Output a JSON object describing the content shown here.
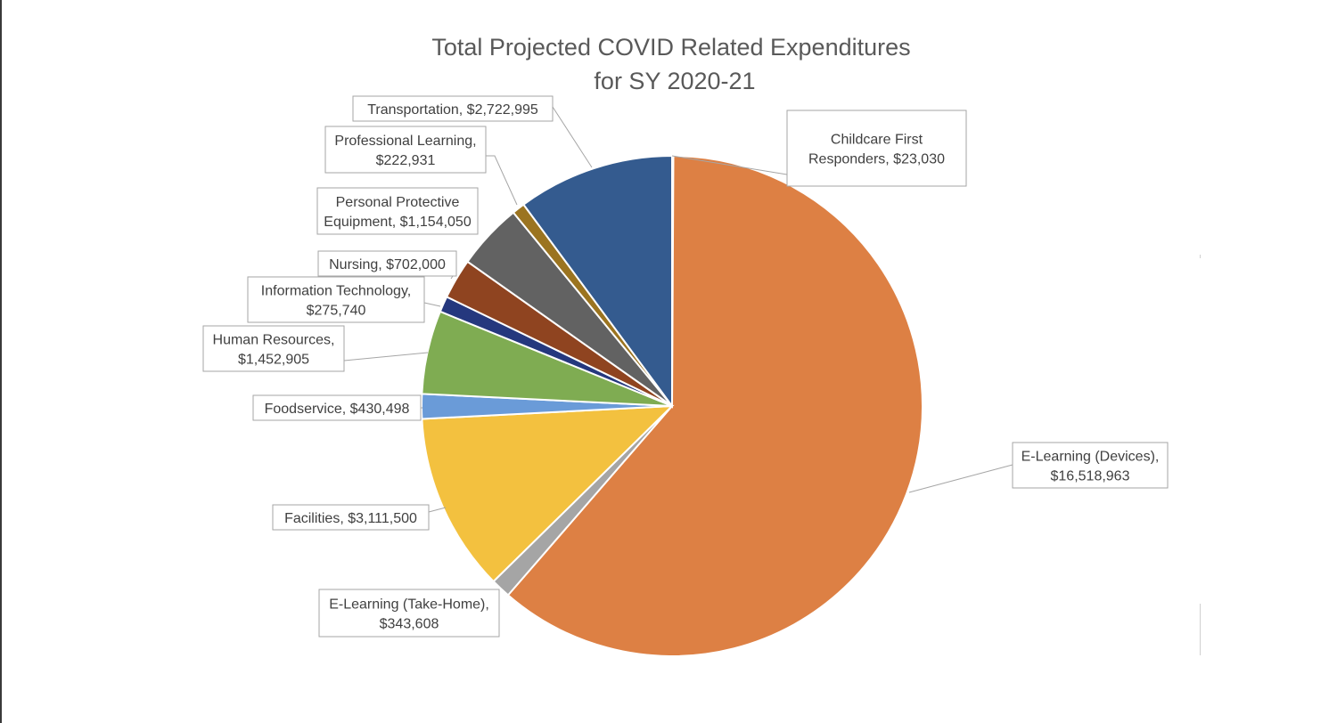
{
  "chart_data": {
    "type": "pie",
    "title_lines": [
      "Total Projected COVID Related Expenditures",
      "for SY 2020-21"
    ],
    "start_angle_deg": 0,
    "direction": "clockwise",
    "slices": [
      {
        "name": "Childcare First Responders",
        "value": 23030,
        "color": "#264478",
        "label_lines": [
          "Childcare First",
          "Responders, $23,030"
        ]
      },
      {
        "name": "E-Learning (Devices)",
        "value": 16518963,
        "color": "#DD8044",
        "label_lines": [
          "E-Learning (Devices),",
          "$16,518,963"
        ]
      },
      {
        "name": "E-Learning (Take-Home)",
        "value": 343608,
        "color": "#A5A5A5",
        "label_lines": [
          "E-Learning (Take-Home),",
          "$343,608"
        ]
      },
      {
        "name": "Facilities",
        "value": 3111500,
        "color": "#F3C13F",
        "label_lines": [
          "Facilities, $3,111,500"
        ]
      },
      {
        "name": "Foodservice",
        "value": 430498,
        "color": "#6A9BD8",
        "label_lines": [
          "Foodservice, $430,498"
        ]
      },
      {
        "name": "Human Resources",
        "value": 1452905,
        "color": "#7FAC52",
        "label_lines": [
          "Human Resources,",
          "$1,452,905"
        ]
      },
      {
        "name": "Information Technology",
        "value": 275740,
        "color": "#25387E",
        "label_lines": [
          "Information Technology,",
          "$275,740"
        ]
      },
      {
        "name": "Nursing",
        "value": 702000,
        "color": "#8F4420",
        "label_lines": [
          "Nursing, $702,000"
        ]
      },
      {
        "name": "Personal Protective Equipment",
        "value": 1154050,
        "color": "#626262",
        "label_lines": [
          "Personal Protective",
          "Equipment, $1,154,050"
        ]
      },
      {
        "name": "Professional Learning",
        "value": 222931,
        "color": "#9B7420",
        "label_lines": [
          "Professional Learning,",
          "$222,931"
        ]
      },
      {
        "name": "Transportation",
        "value": 2722995,
        "color": "#345B8F",
        "label_lines": [
          "Transportation, $2,722,995"
        ]
      }
    ]
  }
}
